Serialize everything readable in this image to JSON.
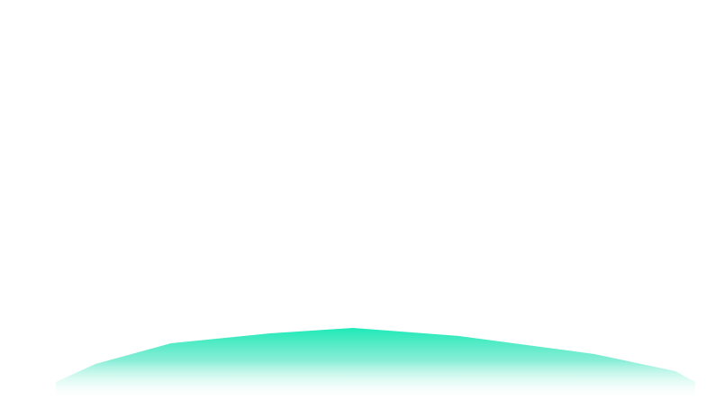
{
  "scene": {
    "background_color": "#ffffff",
    "mound": {
      "shape": "teal-gradient-mound",
      "top_color": "#1de9b6",
      "bottom_color": "#ffffff"
    }
  }
}
